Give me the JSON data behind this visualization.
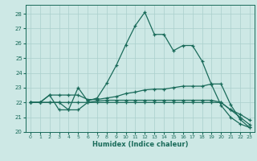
{
  "xlabel": "Humidex (Indice chaleur)",
  "bg_color": "#cde8e5",
  "grid_color": "#aacfcc",
  "line_color": "#1a6b5a",
  "xlim": [
    -0.5,
    23.5
  ],
  "ylim": [
    20,
    28.6
  ],
  "xticks": [
    0,
    1,
    2,
    3,
    4,
    5,
    6,
    7,
    8,
    9,
    10,
    11,
    12,
    13,
    14,
    15,
    16,
    17,
    18,
    19,
    20,
    21,
    22,
    23
  ],
  "yticks": [
    20,
    21,
    22,
    23,
    24,
    25,
    26,
    27,
    28
  ],
  "line1": [
    22.0,
    22.0,
    22.5,
    21.5,
    21.5,
    23.0,
    22.1,
    22.3,
    23.3,
    24.5,
    25.9,
    27.2,
    28.1,
    26.6,
    26.6,
    25.5,
    25.85,
    25.85,
    24.8,
    23.2,
    21.8,
    21.0,
    20.55,
    20.3
  ],
  "line2": [
    22.0,
    22.0,
    22.5,
    22.5,
    22.5,
    22.5,
    22.2,
    22.2,
    22.3,
    22.4,
    22.6,
    22.7,
    22.85,
    22.9,
    22.9,
    23.0,
    23.1,
    23.1,
    23.1,
    23.25,
    23.25,
    21.85,
    20.85,
    20.3
  ],
  "line3": [
    22.0,
    22.0,
    22.0,
    22.0,
    22.0,
    22.0,
    22.0,
    22.0,
    22.0,
    22.0,
    22.0,
    22.0,
    22.0,
    22.0,
    22.0,
    22.0,
    22.0,
    22.0,
    22.0,
    22.0,
    22.0,
    21.5,
    21.2,
    20.8
  ],
  "line4": [
    22.0,
    22.0,
    22.0,
    22.0,
    21.5,
    21.5,
    22.0,
    22.1,
    22.15,
    22.15,
    22.15,
    22.15,
    22.15,
    22.15,
    22.15,
    22.15,
    22.15,
    22.15,
    22.15,
    22.15,
    22.0,
    21.5,
    21.0,
    20.5
  ]
}
